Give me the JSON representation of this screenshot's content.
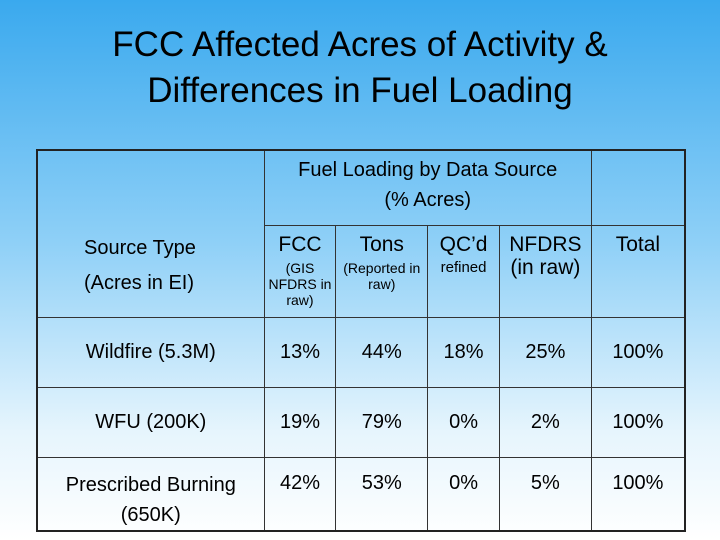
{
  "title": {
    "line1": "FCC Affected Acres of Activity &",
    "line2": "Differences in Fuel Loading"
  },
  "table": {
    "header_title": {
      "line1": "Fuel Loading by Data Source",
      "line2": "(% Acres)"
    },
    "source_type": {
      "line1": "Source Type",
      "line2": "(Acres in EI)"
    },
    "columns": [
      {
        "label": "FCC",
        "sub": "(GIS NFDRS in raw)"
      },
      {
        "label": "Tons",
        "sub": "(Reported in raw)"
      },
      {
        "label": "QC’d",
        "sub": "refined"
      },
      {
        "label": "NFDRS",
        "sub": "(in raw)"
      },
      {
        "label": "Total",
        "sub": ""
      }
    ],
    "rows": [
      {
        "label": "Wildfire (5.3M)",
        "values": [
          "13%",
          "44%",
          "18%",
          "25%",
          "100%"
        ]
      },
      {
        "label": "WFU (200K)",
        "values": [
          "19%",
          "79%",
          "0%",
          "2%",
          "100%"
        ]
      },
      {
        "label_line1": "Prescribed Burning",
        "label_line2": "(650K)",
        "values": [
          "42%",
          "53%",
          "0%",
          "5%",
          "100%"
        ]
      }
    ]
  }
}
